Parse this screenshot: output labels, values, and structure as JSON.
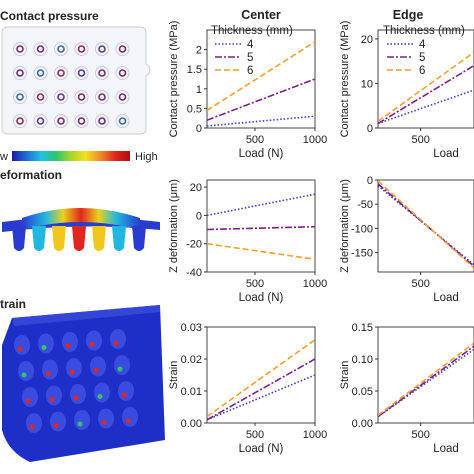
{
  "rows": {
    "pressure": "Contact pressure",
    "deformation": "eformation",
    "strain": "train"
  },
  "colorbar": {
    "low": "w",
    "high": "High",
    "colors": [
      "#1a1aa8",
      "#1f6fd6",
      "#22c1e6",
      "#2ec46a",
      "#a9d62a",
      "#f0e11c",
      "#f0892a",
      "#e0261f",
      "#b10d12"
    ]
  },
  "legend": {
    "title": "Thickness (mm)",
    "items": [
      "4",
      "5",
      "6"
    ]
  },
  "series_style": [
    {
      "color": "#3b3bc8",
      "dash": "1.5,2"
    },
    {
      "color": "#7a1f8c",
      "dash": "7,2,2,2"
    },
    {
      "color": "#f0a030",
      "dash": "6,3"
    }
  ],
  "chart_data": [
    {
      "id": "p_center",
      "type": "line",
      "title": "Center",
      "xlabel": "Load (N)",
      "ylabel": "Contact pressure (MPa)",
      "xlim": [
        100,
        1000
      ],
      "ylim": [
        0,
        2.5
      ],
      "xticks": [
        "500",
        "1000"
      ],
      "xtick_vals": [
        500,
        1000
      ],
      "yticks": [
        "0",
        "0.5",
        "1",
        "1.5",
        "2"
      ],
      "ytick_vals": [
        0,
        0.5,
        1,
        1.5,
        2
      ],
      "series": [
        {
          "name": "4",
          "x": [
            100,
            1000
          ],
          "y": [
            0.05,
            0.3
          ]
        },
        {
          "name": "5",
          "x": [
            100,
            1000
          ],
          "y": [
            0.2,
            1.25
          ]
        },
        {
          "name": "6",
          "x": [
            100,
            1000
          ],
          "y": [
            0.45,
            2.2
          ]
        }
      ]
    },
    {
      "id": "p_edge",
      "type": "line",
      "title": "Edge",
      "xlabel": "Load",
      "ylabel": "Contact pressure (MPa)",
      "xlim": [
        100,
        1000
      ],
      "ylim": [
        0,
        22
      ],
      "xticks": [
        "500"
      ],
      "xtick_vals": [
        500
      ],
      "yticks": [
        "0",
        "10",
        "20"
      ],
      "ytick_vals": [
        0,
        10,
        20
      ],
      "series": [
        {
          "name": "4",
          "x": [
            100,
            1000
          ],
          "y": [
            1,
            8.5
          ]
        },
        {
          "name": "5",
          "x": [
            100,
            1000
          ],
          "y": [
            1,
            14
          ]
        },
        {
          "name": "6",
          "x": [
            100,
            1000
          ],
          "y": [
            1.5,
            17
          ]
        }
      ]
    },
    {
      "id": "d_center",
      "type": "line",
      "title": "",
      "xlabel": "Load (N)",
      "ylabel": "Z deformation (μm)",
      "xlim": [
        100,
        1000
      ],
      "ylim": [
        -40,
        25
      ],
      "xticks": [
        "500",
        "1000"
      ],
      "xtick_vals": [
        500,
        1000
      ],
      "yticks": [
        "20",
        "0",
        "-20",
        "-40"
      ],
      "ytick_vals": [
        20,
        0,
        -20,
        -40
      ],
      "series": [
        {
          "name": "4",
          "x": [
            100,
            1000
          ],
          "y": [
            0,
            15
          ]
        },
        {
          "name": "5",
          "x": [
            100,
            1000
          ],
          "y": [
            -10,
            -8
          ]
        },
        {
          "name": "6",
          "x": [
            100,
            1000
          ],
          "y": [
            -20,
            -31
          ]
        }
      ]
    },
    {
      "id": "d_edge",
      "type": "line",
      "title": "",
      "xlabel": "Load",
      "ylabel": "Z deformation (μm)",
      "xlim": [
        100,
        1000
      ],
      "ylim": [
        -190,
        0
      ],
      "xticks": [
        "500"
      ],
      "xtick_vals": [
        500
      ],
      "yticks": [
        "0",
        "-50",
        "-100",
        "-150"
      ],
      "ytick_vals": [
        0,
        -50,
        -100,
        -150
      ],
      "series": [
        {
          "name": "4",
          "x": [
            100,
            1000
          ],
          "y": [
            -12,
            -175
          ]
        },
        {
          "name": "5",
          "x": [
            100,
            1000
          ],
          "y": [
            -8,
            -178
          ]
        },
        {
          "name": "6",
          "x": [
            100,
            1000
          ],
          "y": [
            -2,
            -182
          ]
        }
      ]
    },
    {
      "id": "s_center",
      "type": "line",
      "title": "",
      "xlabel": "Load (N)",
      "ylabel": "Strain",
      "xlim": [
        100,
        1000
      ],
      "ylim": [
        0,
        0.03
      ],
      "xticks": [
        "500",
        "1000"
      ],
      "xtick_vals": [
        500,
        1000
      ],
      "yticks": [
        "0.00",
        "0.01",
        "0.02",
        "0.03"
      ],
      "ytick_vals": [
        0,
        0.01,
        0.02,
        0.03
      ],
      "series": [
        {
          "name": "4",
          "x": [
            100,
            1000
          ],
          "y": [
            0.001,
            0.015
          ]
        },
        {
          "name": "5",
          "x": [
            100,
            1000
          ],
          "y": [
            0.001,
            0.02
          ]
        },
        {
          "name": "6",
          "x": [
            100,
            1000
          ],
          "y": [
            0.002,
            0.026
          ]
        }
      ]
    },
    {
      "id": "s_edge",
      "type": "line",
      "title": "",
      "xlabel": "Load",
      "ylabel": "Strain",
      "xlim": [
        100,
        1000
      ],
      "ylim": [
        0,
        0.15
      ],
      "xticks": [
        "500"
      ],
      "xtick_vals": [
        500
      ],
      "yticks": [
        "0.00",
        "0.05",
        "0.10",
        "0.15"
      ],
      "ytick_vals": [
        0,
        0.05,
        0.1,
        0.15
      ],
      "series": [
        {
          "name": "4",
          "x": [
            100,
            1000
          ],
          "y": [
            0.01,
            0.115
          ]
        },
        {
          "name": "5",
          "x": [
            100,
            1000
          ],
          "y": [
            0.01,
            0.12
          ]
        },
        {
          "name": "6",
          "x": [
            100,
            1000
          ],
          "y": [
            0.012,
            0.125
          ]
        }
      ]
    }
  ]
}
